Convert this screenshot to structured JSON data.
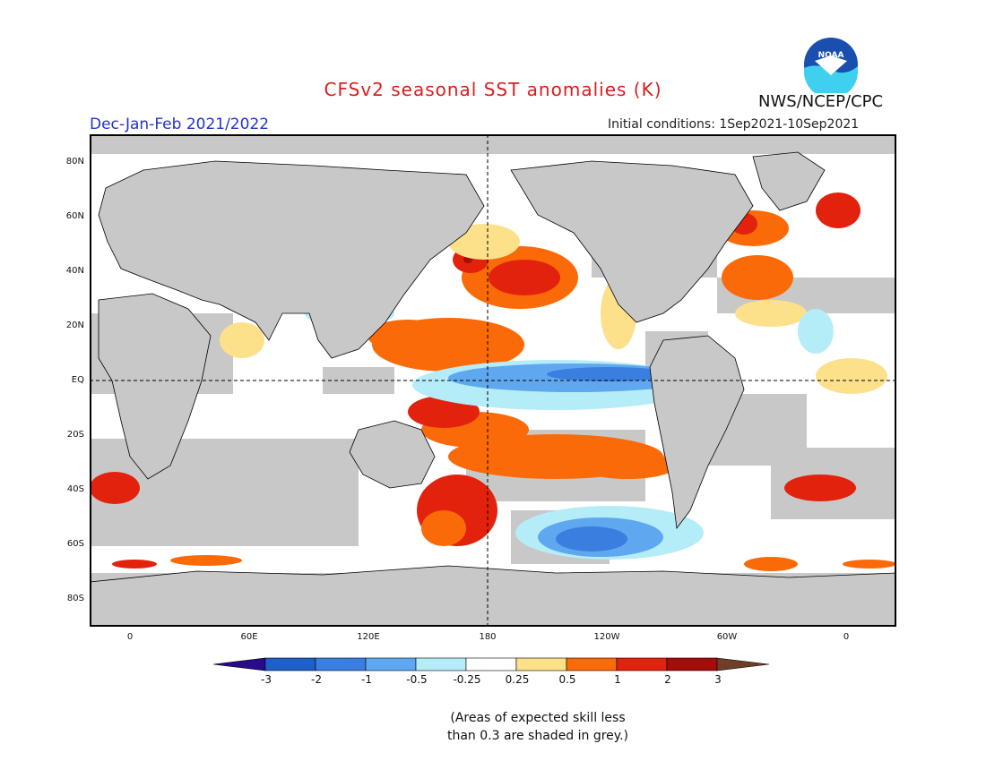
{
  "header": {
    "title": "CFSv2 seasonal SST anomalies (K)",
    "agency": "NWS/NCEP/CPC",
    "season": "Dec-Jan-Feb 2021/2022",
    "initial_conditions": "Initial conditions: 1Sep2021-10Sep2021",
    "logo_text": "NOAA"
  },
  "axes": {
    "lat_labels": [
      "80N",
      "60N",
      "40N",
      "20N",
      "EQ",
      "20S",
      "40S",
      "60S",
      "80S"
    ],
    "lon_labels": [
      "0",
      "60E",
      "120E",
      "180",
      "120W",
      "60W",
      "0"
    ]
  },
  "colorbar": {
    "ticks": [
      "-3",
      "-2",
      "-1",
      "-0.5",
      "-0.25",
      "0.25",
      "0.5",
      "1",
      "2",
      "3"
    ],
    "colors": [
      "#2a0a8c",
      "#1f5fc8",
      "#3a7ee0",
      "#5fa8f0",
      "#b4ecf8",
      "#ffffff",
      "#fde08a",
      "#fb6a08",
      "#e3220e",
      "#a30d0a",
      "#6e3e2a"
    ]
  },
  "map_colors": {
    "land": "#c8c8c8",
    "low_skill": "#c8c8c8",
    "ocean_neutral": "#ffffff"
  },
  "note": {
    "line1": "(Areas of expected skill less",
    "line2": "than 0.3 are shaded in grey.)"
  }
}
